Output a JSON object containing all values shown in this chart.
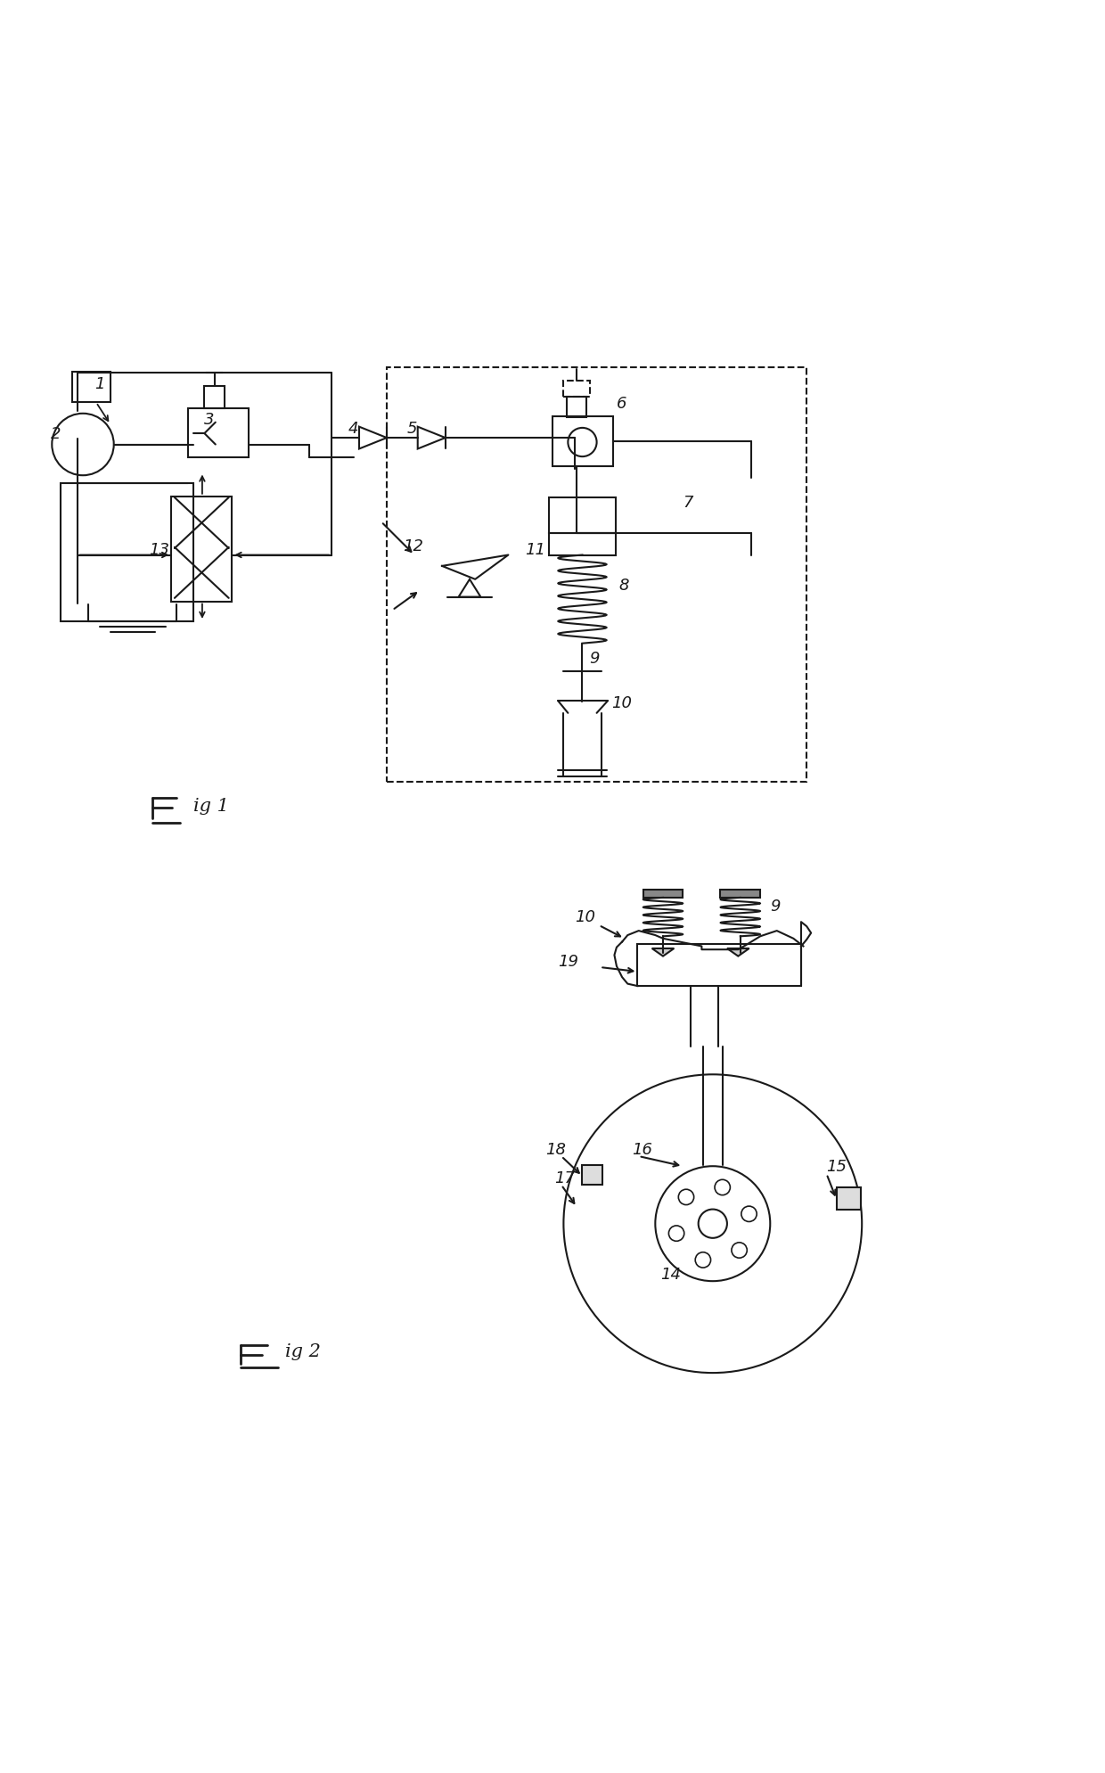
{
  "fig_width": 12.4,
  "fig_height": 19.89,
  "dpi": 100,
  "bg_color": "#ffffff",
  "line_color": "#1a1a1a",
  "lw": 1.5
}
